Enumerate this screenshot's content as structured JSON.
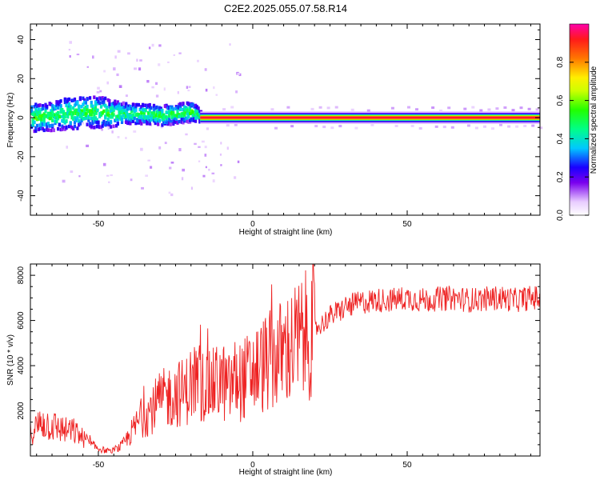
{
  "figure_title": "C2E2.2025.055.07.58.R14",
  "chart_data": [
    {
      "type": "heatmap",
      "xlabel": "Height of straight line (km)",
      "ylabel": "Frequency (Hz)",
      "xlim": [
        -72,
        93
      ],
      "ylim": [
        -50,
        48
      ],
      "x_ticks": [
        -50,
        0,
        50
      ],
      "y_ticks": [
        -40,
        -20,
        0,
        20,
        40
      ],
      "grid": false,
      "colorbar": {
        "label": "Normalized spectral amplitude",
        "range": [
          0.0,
          1.0
        ],
        "ticks": [
          "0.0",
          "0.2",
          "0.4",
          "0.6",
          "0.8"
        ],
        "tick_values": [
          0.0,
          0.2,
          0.4,
          0.6,
          0.8
        ]
      },
      "centroid_track": {
        "x": [
          -72,
          -65,
          -60,
          -55,
          -50,
          -45,
          -40,
          -35,
          -30,
          -25,
          -20,
          -18,
          -17,
          0,
          50,
          93
        ],
        "y": [
          0,
          1,
          2,
          3,
          3,
          2,
          2,
          2,
          1,
          2,
          3,
          2,
          0,
          0,
          0,
          0
        ]
      },
      "band_halfwidth_hz": {
        "x": [
          -72,
          -60,
          -50,
          -40,
          -30,
          -20,
          -17,
          0,
          93
        ],
        "y": [
          7,
          8,
          8,
          5,
          5,
          5,
          3,
          3,
          3
        ]
      }
    },
    {
      "type": "line",
      "xlabel": "Height of straight line (km)",
      "ylabel": "SNR (10 * v/v)",
      "xlim": [
        -72,
        93
      ],
      "ylim": [
        0,
        8500
      ],
      "x_ticks": [
        -50,
        0,
        50
      ],
      "y_ticks": [
        2000,
        4000,
        6000,
        8000
      ],
      "grid": false,
      "series": [
        {
          "color": "#ee2222",
          "x": [
            -72,
            -70,
            -68,
            -66,
            -64,
            -62,
            -60,
            -58,
            -56,
            -54,
            -52,
            -50,
            -48,
            -46,
            -44,
            -42,
            -40,
            -38,
            -36,
            -34,
            -32,
            -30,
            -28,
            -26,
            -24,
            -22,
            -20,
            -18,
            -16,
            -14,
            -12,
            -10,
            -8,
            -6,
            -4,
            -2,
            0,
            2,
            4,
            6,
            8,
            10,
            12,
            14,
            16,
            18,
            20,
            22,
            25,
            28,
            30,
            35,
            40,
            45,
            50,
            55,
            60,
            65,
            70,
            75,
            80,
            85,
            90,
            93
          ],
          "y": [
            1000,
            1300,
            1500,
            1400,
            1300,
            1200,
            1100,
            1100,
            900,
            700,
            450,
            350,
            250,
            200,
            300,
            500,
            900,
            1300,
            1700,
            1900,
            2200,
            2400,
            2600,
            2700,
            2800,
            2800,
            3200,
            3400,
            3100,
            3000,
            3200,
            3400,
            2900,
            3400,
            3300,
            3500,
            3700,
            3900,
            4100,
            4200,
            4400,
            4600,
            4800,
            5000,
            5200,
            5400,
            5600,
            5800,
            6200,
            6400,
            6600,
            6800,
            6900,
            6900,
            7000,
            6900,
            6950,
            7000,
            6900,
            6950,
            7000,
            6900,
            7000,
            7000
          ]
        }
      ]
    }
  ]
}
